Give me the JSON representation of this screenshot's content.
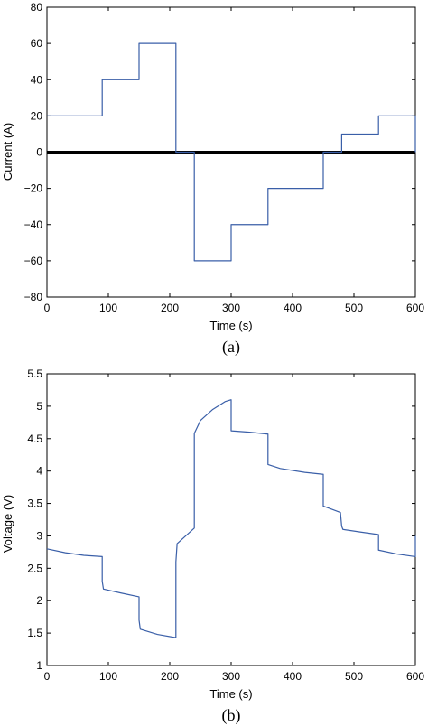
{
  "chart_data": [
    {
      "type": "line",
      "caption": "(a)",
      "xlabel": "Time (s)",
      "ylabel": "Current (A)",
      "xlim": [
        0,
        600
      ],
      "ylim": [
        -80,
        80
      ],
      "xticks": [
        0,
        100,
        200,
        300,
        400,
        500,
        600
      ],
      "yticks": [
        -80,
        -60,
        -40,
        -20,
        0,
        20,
        40,
        60,
        80
      ],
      "xtick_labels": [
        "0",
        "100",
        "200",
        "300",
        "400",
        "500",
        "600"
      ],
      "ytick_labels": [
        "−80",
        "−60",
        "−40",
        "−20",
        "0",
        "20",
        "40",
        "60",
        "80"
      ],
      "grid": false,
      "zero_line": true,
      "series": [
        {
          "color": "#3a5fa8",
          "x": [
            0,
            90,
            90,
            150,
            150,
            210,
            210,
            240,
            240,
            300,
            300,
            360,
            360,
            450,
            450,
            480,
            480,
            540,
            540,
            600,
            600
          ],
          "y": [
            20,
            20,
            40,
            40,
            60,
            60,
            0,
            0,
            -60,
            -60,
            -40,
            -40,
            -20,
            -20,
            0,
            0,
            10,
            10,
            20,
            20,
            0
          ]
        }
      ]
    },
    {
      "type": "line",
      "caption": "(b)",
      "xlabel": "Time (s)",
      "ylabel": "Voltage (V)",
      "xlim": [
        0,
        600
      ],
      "ylim": [
        1,
        5.5
      ],
      "xticks": [
        0,
        100,
        200,
        300,
        400,
        500,
        600
      ],
      "yticks": [
        1,
        1.5,
        2,
        2.5,
        3,
        3.5,
        4,
        4.5,
        5,
        5.5
      ],
      "xtick_labels": [
        "0",
        "100",
        "200",
        "300",
        "400",
        "500",
        "600"
      ],
      "ytick_labels": [
        "1",
        "1.5",
        "2",
        "2.5",
        "3",
        "3.5",
        "4",
        "4.5",
        "5",
        "5.5"
      ],
      "grid": false,
      "series": [
        {
          "color": "#3a5fa8",
          "x": [
            0,
            30,
            60,
            90,
            90,
            92,
            120,
            150,
            150,
            152,
            180,
            210,
            210,
            212,
            240,
            240,
            250,
            270,
            290,
            300,
            300,
            330,
            360,
            360,
            380,
            420,
            450,
            450,
            478,
            480,
            482,
            510,
            540,
            540,
            570,
            600,
            600
          ],
          "y": [
            2.8,
            2.74,
            2.7,
            2.68,
            2.3,
            2.18,
            2.12,
            2.06,
            1.7,
            1.56,
            1.48,
            1.43,
            2.6,
            2.88,
            3.12,
            4.58,
            4.78,
            4.95,
            5.07,
            5.1,
            4.62,
            4.6,
            4.57,
            4.1,
            4.04,
            3.98,
            3.95,
            3.46,
            3.36,
            3.15,
            3.1,
            3.06,
            3.02,
            2.78,
            2.72,
            2.68,
            3.0
          ]
        }
      ]
    }
  ]
}
